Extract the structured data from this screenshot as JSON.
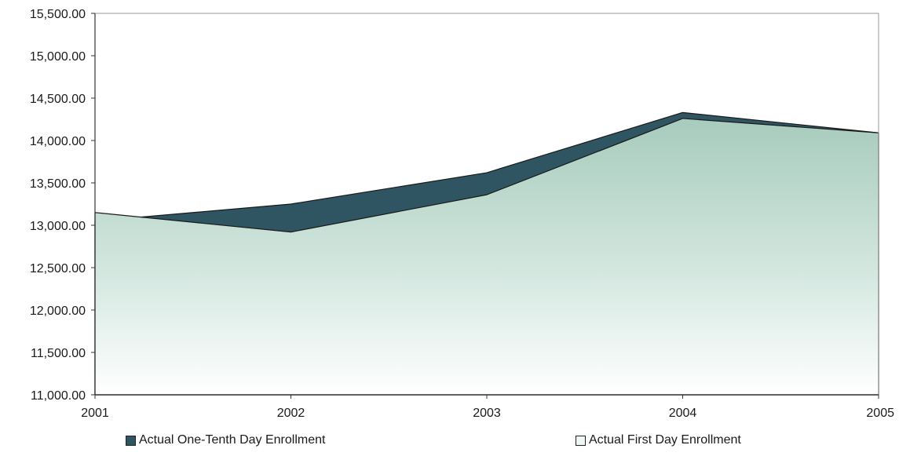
{
  "chart_data": {
    "type": "area",
    "title": "",
    "x": [
      "2001",
      "2002",
      "2003",
      "2004",
      "2005"
    ],
    "ylim": [
      11000,
      15500
    ],
    "yticks": [
      "11,000.00",
      "11,500.00",
      "12,000.00",
      "12,500.00",
      "13,000.00",
      "13,500.00",
      "14,000.00",
      "14,500.00",
      "15,000.00",
      "15,500.00"
    ],
    "series": [
      {
        "name": "Actual One-Tenth Day Enrollment",
        "values": [
          13050,
          13250,
          13620,
          14330,
          14090
        ],
        "color": "#2f5562"
      },
      {
        "name": "Actual First Day Enrollment",
        "values": [
          13150,
          12920,
          13360,
          14260,
          14090
        ],
        "color": "#c5e0d6"
      }
    ],
    "grid": false,
    "legend_position": "bottom"
  }
}
